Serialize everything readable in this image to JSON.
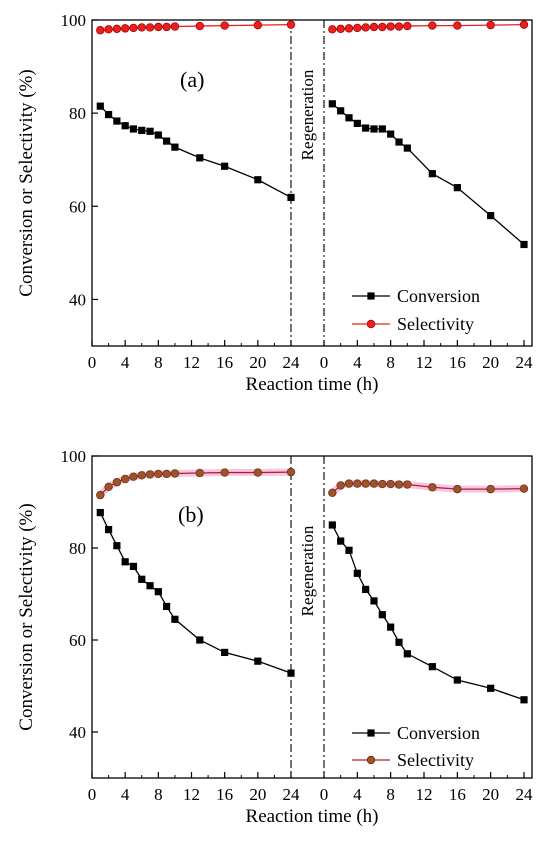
{
  "chart_data": [
    {
      "type": "line",
      "panel_label": "(a)",
      "xlabel": "Reaction time (h)",
      "ylabel": "Conversion or Selectivity (%)",
      "ylim": [
        30,
        100
      ],
      "yticks": [
        40,
        60,
        80,
        100
      ],
      "xlim": [
        0,
        24
      ],
      "xticks": [
        0,
        4,
        8,
        12,
        16,
        20,
        24
      ],
      "xticklabels": [
        "0",
        "4",
        "8",
        "12",
        "16",
        "20",
        "24"
      ],
      "divider_label": "Regeneration",
      "legend_position": "bottom-right",
      "segments": [
        {
          "series": [
            {
              "name": "Conversion",
              "marker": "square",
              "color": "#000000",
              "x": [
                1,
                2,
                3,
                4,
                5,
                6,
                7,
                8,
                9,
                10,
                13,
                16,
                20,
                24
              ],
              "y": [
                81.5,
                79.7,
                78.3,
                77.3,
                76.6,
                76.3,
                76.1,
                75.3,
                74.0,
                72.7,
                70.4,
                68.6,
                65.7,
                61.9
              ]
            },
            {
              "name": "Selectivity",
              "marker": "circle",
              "color": "#e8201e",
              "x": [
                1,
                2,
                3,
                4,
                5,
                6,
                7,
                8,
                9,
                10,
                13,
                16,
                20,
                24
              ],
              "y": [
                97.8,
                98.0,
                98.1,
                98.2,
                98.3,
                98.4,
                98.4,
                98.5,
                98.5,
                98.6,
                98.7,
                98.8,
                98.9,
                99.0
              ]
            }
          ]
        },
        {
          "series": [
            {
              "name": "Conversion",
              "marker": "square",
              "color": "#000000",
              "x": [
                1,
                2,
                3,
                4,
                5,
                6,
                7,
                8,
                9,
                10,
                13,
                16,
                20,
                24
              ],
              "y": [
                82.0,
                80.5,
                79.0,
                77.8,
                76.8,
                76.6,
                76.6,
                75.5,
                73.8,
                72.5,
                67.0,
                64.0,
                58.0,
                51.8
              ]
            },
            {
              "name": "Selectivity",
              "marker": "circle",
              "color": "#e8201e",
              "x": [
                1,
                2,
                3,
                4,
                5,
                6,
                7,
                8,
                9,
                10,
                13,
                16,
                20,
                24
              ],
              "y": [
                98.0,
                98.1,
                98.2,
                98.3,
                98.4,
                98.5,
                98.5,
                98.6,
                98.6,
                98.7,
                98.8,
                98.8,
                98.9,
                99.0
              ]
            }
          ]
        }
      ]
    },
    {
      "type": "line",
      "panel_label": "(b)",
      "xlabel": "Reaction time (h)",
      "ylabel": "Conversion or Selectivity (%)",
      "ylim": [
        30,
        100
      ],
      "yticks": [
        40,
        60,
        80,
        100
      ],
      "xlim": [
        0,
        24
      ],
      "xticks": [
        0,
        4,
        8,
        12,
        16,
        20,
        24
      ],
      "xticklabels": [
        "0",
        "4",
        "8",
        "12",
        "16",
        "20",
        "24"
      ],
      "divider_label": "Regeneration",
      "legend_position": "bottom-right",
      "segments": [
        {
          "series": [
            {
              "name": "Conversion",
              "marker": "square",
              "color": "#000000",
              "x": [
                1,
                2,
                3,
                4,
                5,
                6,
                7,
                8,
                9,
                10,
                13,
                16,
                20,
                24
              ],
              "y": [
                87.7,
                84.0,
                80.5,
                77.0,
                76.0,
                73.2,
                71.8,
                70.5,
                67.3,
                64.5,
                60.0,
                57.3,
                55.4,
                52.8
              ]
            },
            {
              "name": "Selectivity",
              "marker": "circle",
              "color": "#a0522d",
              "x": [
                1,
                2,
                3,
                4,
                5,
                6,
                7,
                8,
                9,
                10,
                13,
                16,
                20,
                24
              ],
              "y": [
                91.5,
                93.3,
                94.3,
                95.0,
                95.5,
                95.8,
                96.0,
                96.1,
                96.1,
                96.2,
                96.3,
                96.4,
                96.4,
                96.5
              ]
            }
          ]
        },
        {
          "series": [
            {
              "name": "Conversion",
              "marker": "square",
              "color": "#000000",
              "x": [
                1,
                2,
                3,
                4,
                5,
                6,
                7,
                8,
                9,
                10,
                13,
                16,
                20,
                24
              ],
              "y": [
                85.0,
                81.5,
                79.5,
                74.5,
                71.0,
                68.5,
                65.5,
                62.8,
                59.5,
                57.0,
                54.2,
                51.3,
                49.5,
                47.0
              ]
            },
            {
              "name": "Selectivity",
              "marker": "circle",
              "color": "#a0522d",
              "x": [
                1,
                2,
                3,
                4,
                5,
                6,
                7,
                8,
                9,
                10,
                13,
                16,
                20,
                24
              ],
              "y": [
                92.0,
                93.6,
                94.0,
                94.0,
                94.0,
                94.0,
                93.9,
                93.9,
                93.8,
                93.8,
                93.2,
                92.8,
                92.8,
                92.9
              ]
            }
          ]
        }
      ]
    }
  ]
}
